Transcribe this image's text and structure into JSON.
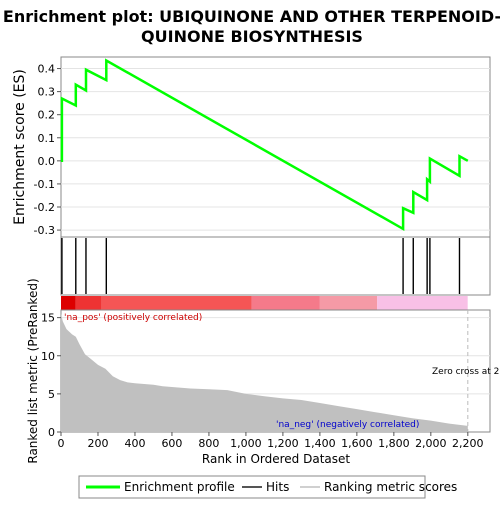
{
  "title_lines": [
    "Enrichment plot: UBIQUINONE AND OTHER TERPENOID-",
    "QUINONE BIOSYNTHESIS"
  ],
  "chart_data": [
    {
      "type": "line",
      "ylabel": "Enrichment score (ES)",
      "ylim": [
        -0.33,
        0.45
      ],
      "yticks": [
        -0.3,
        -0.2,
        -0.1,
        0.0,
        0.1,
        0.2,
        0.3,
        0.4
      ],
      "ytick_labels": [
        "-0.3",
        "-0.2",
        "-0.1",
        "0.0",
        "0.1",
        "0.2",
        "0.3",
        "0.4"
      ],
      "xlim": [
        0,
        2320
      ],
      "series": [
        {
          "name": "Enrichment profile",
          "color": "#00ff00",
          "x": [
            0,
            5,
            5,
            80,
            80,
            135,
            135,
            245,
            245,
            1850,
            1850,
            1905,
            1905,
            1980,
            1980,
            1995,
            1995,
            2155,
            2155,
            2200
          ],
          "y": [
            0.0,
            0.0,
            0.27,
            0.24,
            0.33,
            0.305,
            0.395,
            0.35,
            0.435,
            -0.295,
            -0.205,
            -0.225,
            -0.135,
            -0.17,
            -0.08,
            -0.09,
            0.01,
            -0.065,
            0.02,
            0.0
          ]
        }
      ]
    },
    {
      "type": "scatter",
      "name": "Hits",
      "hit_ranks": [
        5,
        80,
        135,
        245,
        1850,
        1905,
        1980,
        1995,
        2155
      ]
    },
    {
      "type": "heatmap",
      "name": "ranking-color-bar",
      "segments": [
        {
          "from": 0,
          "to": 80,
          "color": "#dd0000"
        },
        {
          "from": 80,
          "to": 220,
          "color": "#ee3333"
        },
        {
          "from": 220,
          "to": 1030,
          "color": "#f55555"
        },
        {
          "from": 1030,
          "to": 1400,
          "color": "#f57a8a"
        },
        {
          "from": 1400,
          "to": 1710,
          "color": "#f59aa6"
        },
        {
          "from": 1710,
          "to": 2200,
          "color": "#f8c0e6"
        },
        {
          "from": 2200,
          "to": 2320,
          "color": "#ffffff"
        }
      ]
    },
    {
      "type": "area",
      "name": "Ranking metric scores",
      "xlabel": "Rank in Ordered Dataset",
      "ylabel": "Ranked list metric (PreRanked)",
      "ylim": [
        0,
        16
      ],
      "yticks": [
        0,
        5,
        10,
        15
      ],
      "ytick_labels": [
        "0",
        "5",
        "10",
        "15"
      ],
      "xticks": [
        0,
        200,
        400,
        600,
        800,
        1000,
        1200,
        1400,
        1600,
        1800,
        2000,
        2200
      ],
      "xtick_labels": [
        "0",
        "200",
        "400",
        "600",
        "800",
        "1,000",
        "1,200",
        "1,400",
        "1,600",
        "1,800",
        "2,000",
        "2,200"
      ],
      "color": "#c0c0c0",
      "x": [
        0,
        10,
        30,
        60,
        80,
        100,
        130,
        160,
        200,
        240,
        280,
        320,
        360,
        400,
        450,
        500,
        550,
        600,
        650,
        700,
        800,
        900,
        1000,
        1100,
        1200,
        1300,
        1400,
        1500,
        1600,
        1700,
        1800,
        1900,
        2000,
        2100,
        2200
      ],
      "y": [
        15.5,
        14.5,
        13.5,
        12.8,
        12.5,
        11.5,
        10.2,
        9.6,
        8.8,
        8.3,
        7.3,
        6.8,
        6.5,
        6.4,
        6.3,
        6.2,
        6.0,
        5.9,
        5.8,
        5.7,
        5.6,
        5.5,
        5.0,
        4.7,
        4.4,
        4.2,
        3.8,
        3.4,
        3.0,
        2.6,
        2.2,
        1.8,
        1.5,
        1.1,
        0.8
      ],
      "annotations": {
        "pos_label": "'na_pos' (positively correlated)",
        "neg_label": "'na_neg' (negatively correlated)",
        "zero_cross": "Zero cross at 2200"
      },
      "zero_cross_rank": 2200
    }
  ],
  "legend": {
    "items": [
      {
        "label": "Enrichment profile",
        "color": "#00ff00"
      },
      {
        "label": "Hits",
        "color": "#000000"
      },
      {
        "label": "Ranking metric scores",
        "color": "#c0c0c0"
      }
    ]
  }
}
